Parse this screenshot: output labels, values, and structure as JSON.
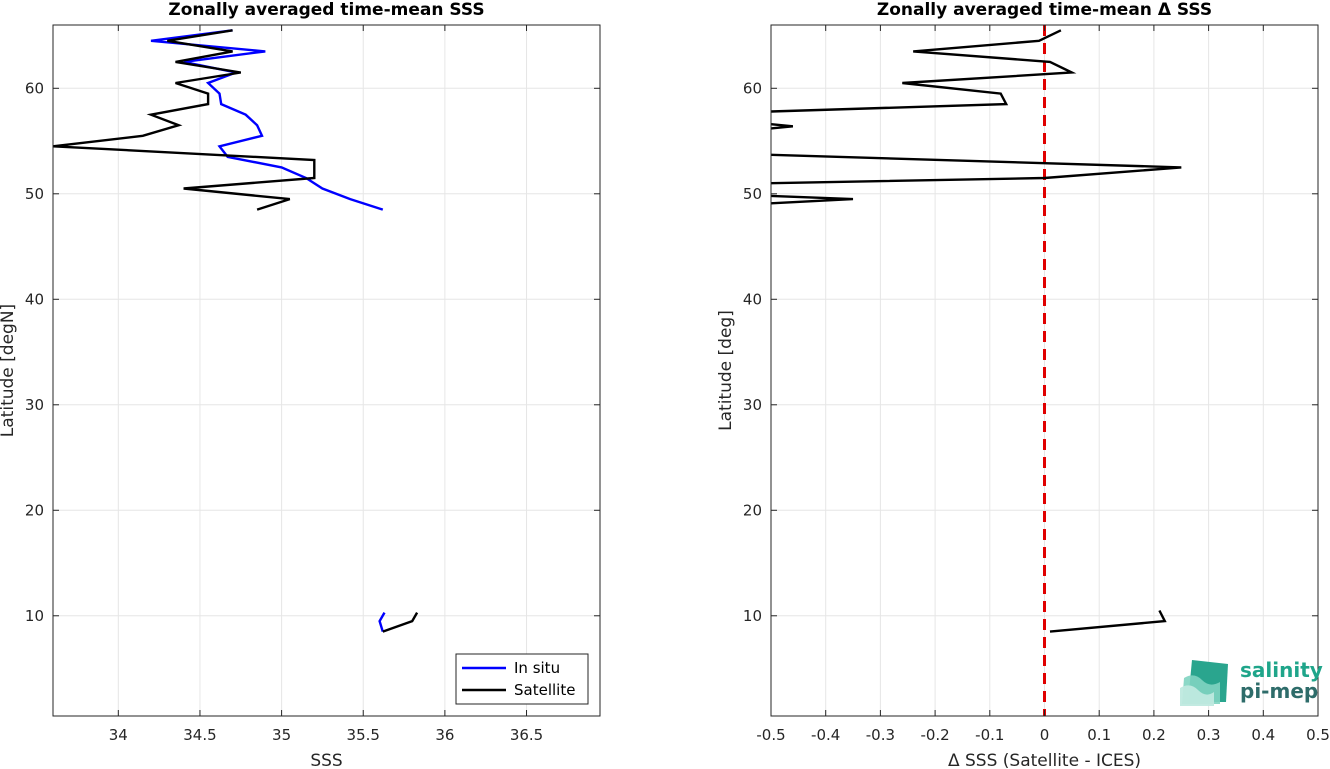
{
  "chart_data": [
    {
      "type": "line",
      "title": "Zonally averaged time-mean SSS",
      "xlabel": "SSS",
      "ylabel": "Latitude [degN]",
      "xlim": [
        33.6,
        36.95
      ],
      "ylim": [
        0.5,
        66
      ],
      "xticks": [
        34,
        34.5,
        35,
        35.5,
        36,
        36.5
      ],
      "xtick_labels": [
        "34",
        "34.5",
        "35",
        "35.5",
        "36",
        "36.5"
      ],
      "yticks": [
        10,
        20,
        30,
        40,
        50,
        60
      ],
      "ytick_labels": [
        "10",
        "20",
        "30",
        "40",
        "50",
        "60"
      ],
      "grid": true,
      "legend": "bottom-right",
      "series": [
        {
          "name": "In situ",
          "color": "#0000ff",
          "segments": [
            [
              [
                34.7,
                65.5
              ],
              [
                34.2,
                64.5
              ],
              [
                34.9,
                63.5
              ],
              [
                34.4,
                62.5
              ],
              [
                34.72,
                61.5
              ],
              [
                34.55,
                60.5
              ],
              [
                34.62,
                59.5
              ],
              [
                34.63,
                58.5
              ],
              [
                34.78,
                57.5
              ],
              [
                34.85,
                56.5
              ],
              [
                34.88,
                55.5
              ],
              [
                34.62,
                54.5
              ],
              [
                34.67,
                53.5
              ],
              [
                35.0,
                52.5
              ],
              [
                35.15,
                51.5
              ],
              [
                35.25,
                50.5
              ],
              [
                35.42,
                49.5
              ],
              [
                35.62,
                48.5
              ]
            ],
            [
              [
                35.63,
                10.3
              ],
              [
                35.6,
                9.5
              ],
              [
                35.62,
                8.5
              ]
            ]
          ]
        },
        {
          "name": "Satellite",
          "color": "#000000",
          "segments": [
            [
              [
                34.7,
                65.5
              ],
              [
                34.3,
                64.5
              ],
              [
                34.7,
                63.5
              ],
              [
                34.35,
                62.5
              ],
              [
                34.75,
                61.5
              ],
              [
                34.35,
                60.5
              ],
              [
                34.55,
                59.5
              ],
              [
                34.55,
                58.5
              ],
              [
                34.2,
                57.5
              ],
              [
                34.37,
                56.5
              ],
              [
                34.15,
                55.5
              ],
              [
                33.6,
                54.5
              ],
              [
                35.2,
                53.2
              ],
              [
                35.2,
                52.3
              ],
              [
                35.2,
                51.5
              ],
              [
                34.4,
                50.5
              ],
              [
                35.05,
                49.5
              ],
              [
                34.85,
                48.5
              ]
            ],
            [
              [
                35.83,
                10.3
              ],
              [
                35.8,
                9.5
              ],
              [
                35.62,
                8.5
              ]
            ]
          ]
        }
      ]
    },
    {
      "type": "line",
      "title": "Zonally averaged time-mean Δ SSS",
      "xlabel": "Δ SSS (Satellite - ICES)",
      "ylabel": "Latitude [deg]",
      "xlim": [
        -0.5,
        0.5
      ],
      "ylim": [
        0.5,
        66
      ],
      "xticks": [
        -0.5,
        -0.4,
        -0.3,
        -0.2,
        -0.1,
        0,
        0.1,
        0.2,
        0.3,
        0.4,
        0.5
      ],
      "xtick_labels": [
        "-0.5",
        "-0.4",
        "-0.3",
        "-0.2",
        "-0.1",
        "0",
        "0.1",
        "0.2",
        "0.3",
        "0.4",
        "0.5"
      ],
      "yticks": [
        10,
        20,
        30,
        40,
        50,
        60
      ],
      "ytick_labels": [
        "10",
        "20",
        "30",
        "40",
        "50",
        "60"
      ],
      "grid": true,
      "reference_line": {
        "x": 0,
        "color": "#e00000",
        "style": "dashed"
      },
      "series": [
        {
          "name": "",
          "color": "#000000",
          "segments": [
            [
              [
                0.03,
                65.5
              ],
              [
                -0.01,
                64.5
              ],
              [
                -0.24,
                63.5
              ],
              [
                0.01,
                62.5
              ],
              [
                0.05,
                61.5
              ],
              [
                -0.26,
                60.5
              ],
              [
                -0.08,
                59.5
              ],
              [
                -0.07,
                58.5
              ],
              [
                -0.5,
                57.8
              ]
            ],
            [
              [
                -0.5,
                56.6
              ],
              [
                -0.46,
                56.4
              ],
              [
                -0.5,
                56.2
              ]
            ],
            [
              [
                -0.5,
                53.7
              ],
              [
                0.25,
                52.5
              ],
              [
                0.0,
                51.5
              ],
              [
                -0.5,
                51.0
              ]
            ],
            [
              [
                -0.5,
                49.8
              ],
              [
                -0.35,
                49.5
              ],
              [
                -0.5,
                49.1
              ]
            ],
            [
              [
                0.21,
                10.5
              ],
              [
                0.22,
                9.5
              ],
              [
                0.01,
                8.5
              ]
            ]
          ]
        }
      ]
    }
  ],
  "logo": {
    "line1": "salinity",
    "line2": "pi-mep"
  }
}
